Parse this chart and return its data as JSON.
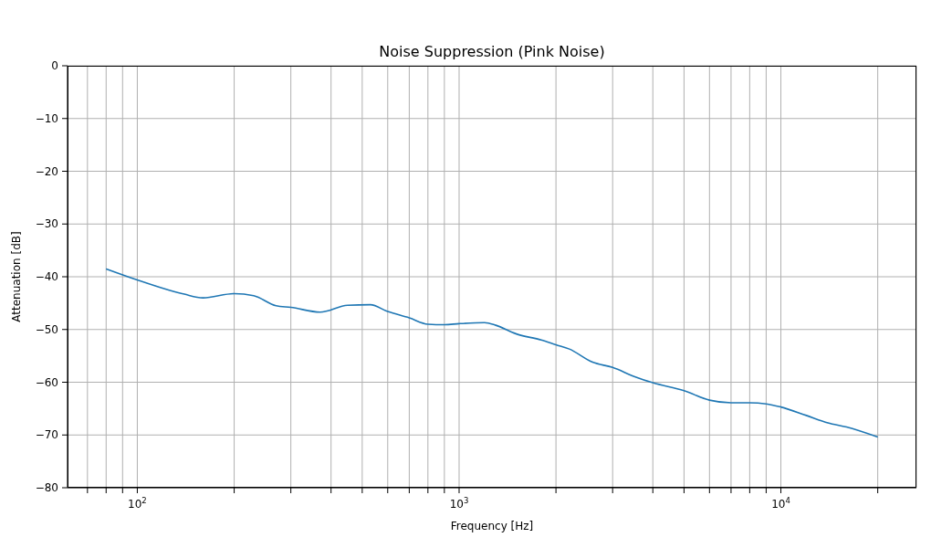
{
  "chart_data": {
    "type": "line",
    "title": "Noise Suppression (Pink Noise)",
    "xlabel": "Frequency [Hz]",
    "ylabel": "Attenuation [dB]",
    "log": "x",
    "grid": true,
    "xlim": [
      60.7,
      26370
    ],
    "ylim": [
      -80,
      0
    ],
    "xticks": [
      {
        "value": 70,
        "label": null
      },
      {
        "value": 80,
        "label": null
      },
      {
        "value": 90,
        "label": null
      },
      {
        "value": 100,
        "label": "10$^{2}$"
      },
      {
        "value": 200,
        "label": null
      },
      {
        "value": 300,
        "label": null
      },
      {
        "value": 400,
        "label": null
      },
      {
        "value": 500,
        "label": null
      },
      {
        "value": 600,
        "label": null
      },
      {
        "value": 700,
        "label": null
      },
      {
        "value": 800,
        "label": null
      },
      {
        "value": 900,
        "label": null
      },
      {
        "value": 1000,
        "label": "10$^{3}$"
      },
      {
        "value": 2000,
        "label": null
      },
      {
        "value": 3000,
        "label": null
      },
      {
        "value": 4000,
        "label": null
      },
      {
        "value": 5000,
        "label": null
      },
      {
        "value": 6000,
        "label": null
      },
      {
        "value": 7000,
        "label": null
      },
      {
        "value": 8000,
        "label": null
      },
      {
        "value": 9000,
        "label": null
      },
      {
        "value": 10000,
        "label": "10$^{4}$"
      },
      {
        "value": 20000,
        "label": null
      }
    ],
    "yticks": [
      -80,
      -70,
      -60,
      -50,
      -40,
      -30,
      -20,
      -10,
      0
    ],
    "x": [
      80,
      100,
      125,
      140,
      160,
      200,
      230,
      270,
      300,
      370,
      450,
      530,
      600,
      700,
      800,
      900,
      1000,
      1200,
      1300,
      1500,
      1800,
      2000,
      2200,
      2600,
      3000,
      3500,
      4000,
      5000,
      6000,
      7000,
      8000,
      9000,
      10000,
      12000,
      14000,
      16000,
      20000
    ],
    "series": [
      {
        "color": "#1f77b4",
        "values": [
          -38.5,
          -40.6,
          -42.5,
          -43.3,
          -44.0,
          -43.2,
          -43.6,
          -45.5,
          -45.8,
          -46.7,
          -45.4,
          -45.3,
          -46.6,
          -47.8,
          -49.0,
          -49.1,
          -48.9,
          -48.7,
          -49.2,
          -50.8,
          -52.0,
          -52.9,
          -53.7,
          -56.2,
          -57.2,
          -58.9,
          -60.1,
          -61.6,
          -63.4,
          -63.9,
          -63.9,
          -64.1,
          -64.7,
          -66.3,
          -67.7,
          -68.5,
          -70.4
        ]
      }
    ]
  }
}
